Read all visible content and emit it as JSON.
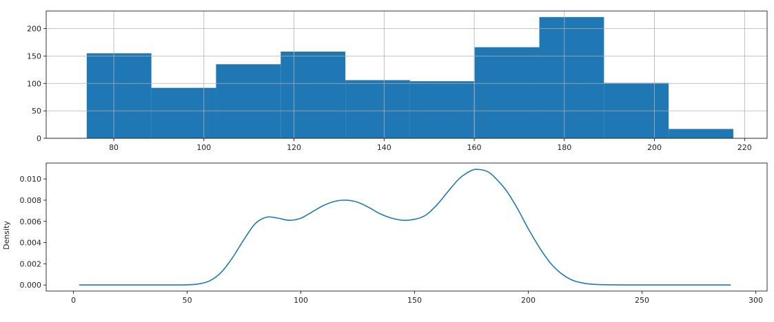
{
  "chart_data": [
    {
      "type": "bar",
      "subtype": "histogram",
      "title": "",
      "xlabel": "",
      "ylabel": "",
      "bins": 10,
      "bin_edges": [
        74.0,
        88.35,
        102.7,
        117.05,
        131.4,
        145.75,
        160.1,
        174.45,
        188.8,
        203.15,
        217.5
      ],
      "values": [
        155,
        92,
        135,
        158,
        106,
        104,
        166,
        221,
        101,
        17
      ],
      "xlim": [
        65,
        225
      ],
      "ylim": [
        0,
        232
      ],
      "xticks": [
        80,
        100,
        120,
        140,
        160,
        180,
        200,
        220
      ],
      "xticklabels": [
        "80",
        "100",
        "120",
        "140",
        "160",
        "180",
        "200",
        "220"
      ],
      "yticks": [
        0,
        50,
        100,
        150,
        200
      ],
      "yticklabels": [
        "0",
        "50",
        "100",
        "150",
        "200"
      ],
      "grid": true,
      "color": "#1f77b4"
    },
    {
      "type": "line",
      "subtype": "density",
      "title": "",
      "xlabel": "",
      "ylabel": "Density",
      "series": [
        {
          "x": [
            2.5,
            20,
            40,
            50,
            55,
            60,
            65,
            70,
            75,
            80,
            85,
            90,
            95,
            100,
            105,
            110,
            115,
            120,
            125,
            130,
            135,
            140,
            145,
            150,
            155,
            160,
            165,
            170,
            175,
            178,
            182,
            185,
            190,
            195,
            200,
            205,
            210,
            215,
            220,
            225,
            230,
            240,
            250,
            270,
            289
          ],
          "y": [
            0.0,
            0.0,
            0.0,
            2e-05,
            0.0001,
            0.0004,
            0.0012,
            0.0026,
            0.0043,
            0.0058,
            0.0064,
            0.0063,
            0.0061,
            0.0063,
            0.0069,
            0.0075,
            0.0079,
            0.008,
            0.0078,
            0.0073,
            0.0067,
            0.0063,
            0.0061,
            0.0062,
            0.0066,
            0.0076,
            0.0089,
            0.0101,
            0.0108,
            0.0109,
            0.0107,
            0.0102,
            0.009,
            0.0073,
            0.0053,
            0.0035,
            0.002,
            0.001,
            0.0004,
            0.00015,
            5e-05,
            1e-05,
            0.0,
            0.0,
            0.0
          ]
        }
      ],
      "xlim": [
        -12,
        305
      ],
      "ylim": [
        -0.00057,
        0.0115
      ],
      "xticks": [
        0,
        50,
        100,
        150,
        200,
        250,
        300
      ],
      "xticklabels": [
        "0",
        "50",
        "100",
        "150",
        "200",
        "250",
        "300"
      ],
      "yticks": [
        0,
        0.002,
        0.004,
        0.006,
        0.008,
        0.01
      ],
      "yticklabels": [
        "0.000",
        "0.002",
        "0.004",
        "0.006",
        "0.008",
        "0.010"
      ],
      "grid": false,
      "color": "#1f77b4"
    }
  ]
}
